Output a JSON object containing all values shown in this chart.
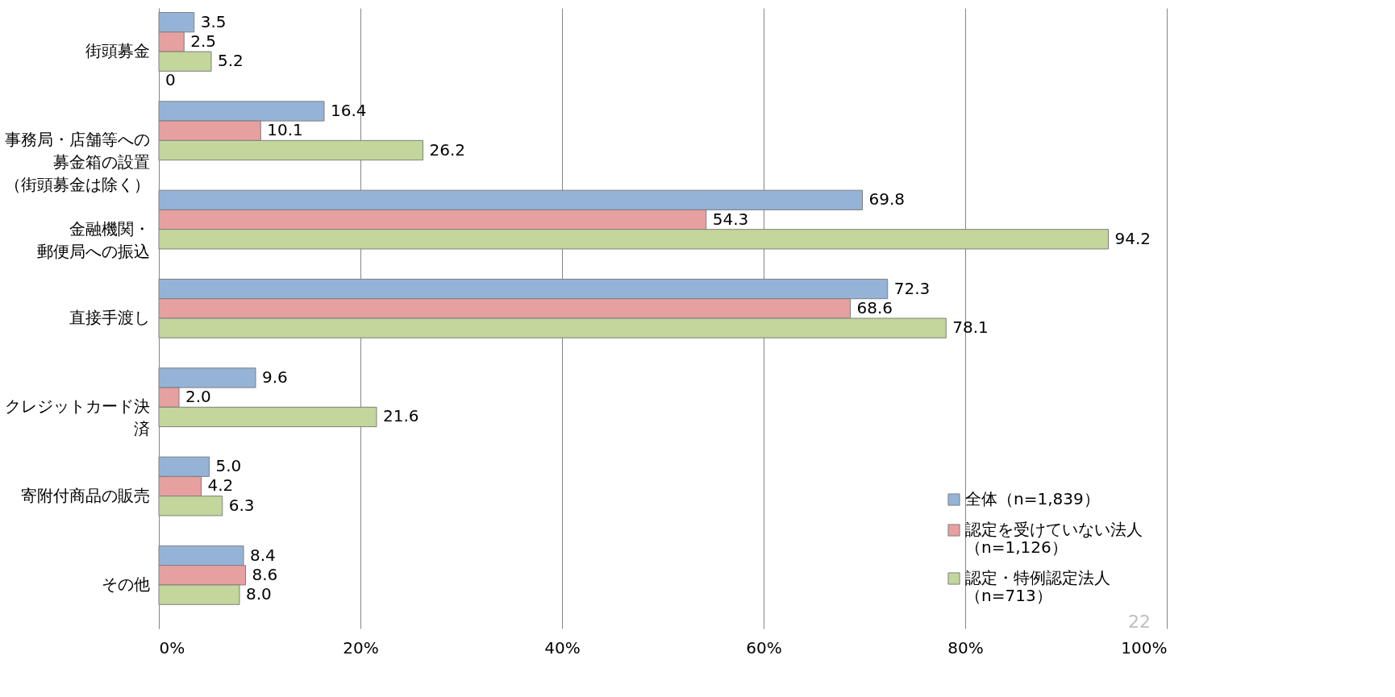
{
  "chart_data": {
    "type": "bar",
    "orientation": "horizontal",
    "categories": [
      "街頭募金",
      "事務局・店舗等への募金箱の設置（街頭募金は除く）",
      "金融機関・郵便局への振込",
      "直接手渡し",
      "クレジットカード決済",
      "寄附付商品の販売",
      "その他"
    ],
    "series": [
      {
        "name": "全体（n=1,839）",
        "color": "#95b3d7",
        "values": [
          3.5,
          16.4,
          69.8,
          72.3,
          9.6,
          5.0,
          8.4
        ],
        "value_labels": [
          "3.5",
          "16.4",
          "69.8",
          "72.3",
          "9.6",
          "5.0",
          "8.4"
        ]
      },
      {
        "name": "認定を受けていない法人（n=1,126）",
        "color": "#e6a0a0",
        "values": [
          2.5,
          10.1,
          54.3,
          68.6,
          2.0,
          4.2,
          8.6
        ],
        "value_labels": [
          "2.5",
          "10.1",
          "54.3",
          "68.6",
          "2.0",
          "4.2",
          "8.6"
        ]
      },
      {
        "name": "認定・特例認定法人（n=713）",
        "color": "#c3d69b",
        "values": [
          5.2,
          26.2,
          94.2,
          78.1,
          21.6,
          6.3,
          8.0
        ],
        "value_labels": [
          "5.2",
          "26.2",
          "94.2",
          "78.1",
          "21.6",
          "6.3",
          "8.0"
        ]
      }
    ],
    "xlim": [
      0,
      100
    ],
    "xticks": [
      {
        "value": 0,
        "label": "0%"
      },
      {
        "value": 20,
        "label": "20%"
      },
      {
        "value": 40,
        "label": "40%"
      },
      {
        "value": 60,
        "label": "60%"
      },
      {
        "value": 80,
        "label": "80%"
      },
      {
        "value": 100,
        "label": "100%"
      }
    ],
    "grid": "x",
    "legend": "bottom right",
    "annotations": [
      {
        "text": "0",
        "x": 0,
        "y": "街頭募金"
      },
      "22"
    ]
  }
}
